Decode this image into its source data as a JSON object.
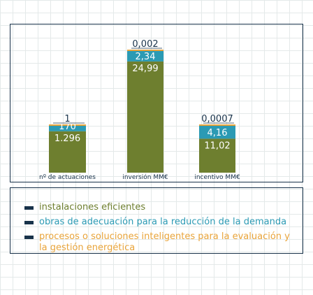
{
  "chart_data": {
    "type": "bar",
    "stacked": true,
    "normalized": true,
    "categories": [
      "nº de actuaciones",
      "inversión MM€",
      "incentivo MM€"
    ],
    "series": [
      {
        "name": "instalaciones eficientes",
        "values": [
          1296,
          24.99,
          11.02
        ],
        "color": "#6e7f2f"
      },
      {
        "name": "obras de adecuación para la reducción de la demanda",
        "values": [
          170,
          2.34,
          4.16
        ],
        "color": "#2b9ab4"
      },
      {
        "name": "procesos o soluciones inteligentes para la evaluación y la gestión energética",
        "values": [
          1,
          0.002,
          0.0007
        ],
        "color": "#e9a43a"
      }
    ],
    "value_labels": [
      [
        "1.296",
        "24,99",
        "11,02"
      ],
      [
        "170",
        "2,34",
        "4,16"
      ],
      [
        "1",
        "0,002",
        "0,0007"
      ]
    ],
    "grid": true,
    "legend_position": "bottom"
  }
}
